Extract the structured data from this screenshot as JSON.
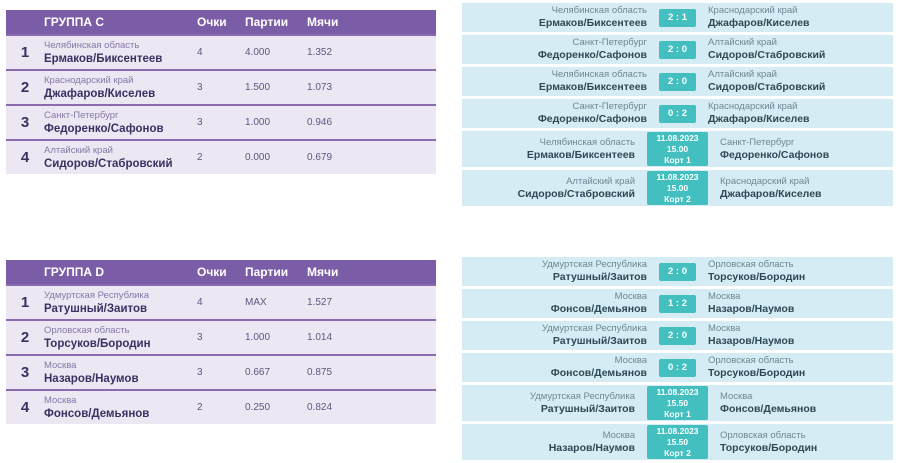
{
  "colors": {
    "header_purple": "#7b5ca6",
    "row_lavender": "#ede7f3",
    "separator_purple": "#8a6bad",
    "badge_teal": "#42bfbe",
    "match_row_blue": "#d6ecf4",
    "rank_text": "#3a3161",
    "region_text_left": "#8478a6",
    "value_text": "#5e5680",
    "match_region_text": "#6d8795",
    "match_name_text": "#2e4956"
  },
  "columns": {
    "points": "Очки",
    "games": "Партии",
    "balls": "Мячи"
  },
  "groups": [
    {
      "standings": {
        "title": "ГРУППА C",
        "rows": [
          {
            "rank": "1",
            "region": "Челябинская область",
            "team": "Ермаков/Биксентеев",
            "points": "4",
            "games": "4.000",
            "balls": "1.352"
          },
          {
            "rank": "2",
            "region": "Краснодарский край",
            "team": "Джафаров/Киселев",
            "points": "3",
            "games": "1.500",
            "balls": "1.073"
          },
          {
            "rank": "3",
            "region": "Санкт-Петербург",
            "team": "Федоренко/Сафонов",
            "points": "3",
            "games": "1.000",
            "balls": "0.946"
          },
          {
            "rank": "4",
            "region": "Алтайский край",
            "team": "Сидоров/Стабровский",
            "points": "2",
            "games": "0.000",
            "balls": "0.679"
          }
        ]
      },
      "matches": [
        {
          "left_region": "Челябинская область",
          "left_name": "Ермаков/Биксентеев",
          "score": "2 : 1",
          "right_region": "Краснодарский край",
          "right_name": "Джафаров/Киселев"
        },
        {
          "left_region": "Санкт-Петербург",
          "left_name": "Федоренко/Сафонов",
          "score": "2 : 0",
          "right_region": "Алтайский край",
          "right_name": "Сидоров/Стабровский"
        },
        {
          "left_region": "Челябинская область",
          "left_name": "Ермаков/Биксентеев",
          "score": "2 : 0",
          "right_region": "Алтайский край",
          "right_name": "Сидоров/Стабровский"
        },
        {
          "left_region": "Санкт-Петербург",
          "left_name": "Федоренко/Сафонов",
          "score": "0 : 2",
          "right_region": "Краснодарский край",
          "right_name": "Джафаров/Киселев"
        },
        {
          "left_region": "Челябинская область",
          "left_name": "Ермаков/Биксентеев",
          "date": "11.08.2023",
          "time": "15.00",
          "court": "Корт 1",
          "right_region": "Санкт-Петербург",
          "right_name": "Федоренко/Сафонов"
        },
        {
          "left_region": "Алтайский край",
          "left_name": "Сидоров/Стабровский",
          "date": "11.08.2023",
          "time": "15.00",
          "court": "Корт 2",
          "right_region": "Краснодарский край",
          "right_name": "Джафаров/Киселев"
        }
      ]
    },
    {
      "standings": {
        "title": "ГРУППА D",
        "rows": [
          {
            "rank": "1",
            "region": "Удмуртская Республика",
            "team": "Ратушный/Заитов",
            "points": "4",
            "games": "MAX",
            "balls": "1.527"
          },
          {
            "rank": "2",
            "region": "Орловская область",
            "team": "Торсуков/Бородин",
            "points": "3",
            "games": "1.000",
            "balls": "1.014"
          },
          {
            "rank": "3",
            "region": "Москва",
            "team": "Назаров/Наумов",
            "points": "3",
            "games": "0.667",
            "balls": "0.875"
          },
          {
            "rank": "4",
            "region": "Москва",
            "team": "Фонсов/Демьянов",
            "points": "2",
            "games": "0.250",
            "balls": "0.824"
          }
        ]
      },
      "matches": [
        {
          "left_region": "Удмуртская Республика",
          "left_name": "Ратушный/Заитов",
          "score": "2 : 0",
          "right_region": "Орловская область",
          "right_name": "Торсуков/Бородин"
        },
        {
          "left_region": "Москва",
          "left_name": "Фонсов/Демьянов",
          "score": "1 : 2",
          "right_region": "Москва",
          "right_name": "Назаров/Наумов"
        },
        {
          "left_region": "Удмуртская Республика",
          "left_name": "Ратушный/Заитов",
          "score": "2 : 0",
          "right_region": "Москва",
          "right_name": "Назаров/Наумов"
        },
        {
          "left_region": "Москва",
          "left_name": "Фонсов/Демьянов",
          "score": "0 : 2",
          "right_region": "Орловская область",
          "right_name": "Торсуков/Бородин"
        },
        {
          "left_region": "Удмуртская Республика",
          "left_name": "Ратушный/Заитов",
          "date": "11.08.2023",
          "time": "15.50",
          "court": "Корт 1",
          "right_region": "Москва",
          "right_name": "Фонсов/Демьянов"
        },
        {
          "left_region": "Москва",
          "left_name": "Назаров/Наумов",
          "date": "11.08.2023",
          "time": "15.50",
          "court": "Корт 2",
          "right_region": "Орловская область",
          "right_name": "Торсуков/Бородин"
        }
      ]
    }
  ]
}
